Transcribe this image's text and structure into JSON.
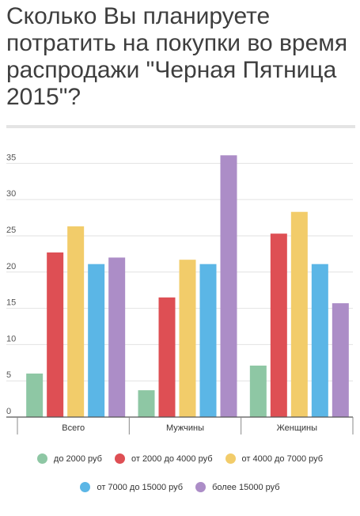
{
  "title": "Сколько Вы планируете потратить на покупки во время распродажи \"Черная Пятница 2015\"?",
  "chart_data": {
    "type": "bar",
    "title": "Сколько Вы планируете потратить на покупки во время распродажи \"Черная Пятница 2015\"?",
    "categories": [
      "Всего",
      "Мужчины",
      "Женщины"
    ],
    "series": [
      {
        "name": "до 2000 руб",
        "color": "#8ec7a4",
        "values": [
          6,
          3.7,
          7.1
        ]
      },
      {
        "name": "от 2000 до 4000 руб",
        "color": "#de4f54",
        "values": [
          22.7,
          16.5,
          25.3
        ]
      },
      {
        "name": "от 4000 до 7000 руб",
        "color": "#f2cc6a",
        "values": [
          26.3,
          21.7,
          28.3
        ]
      },
      {
        "name": "от 7000 до 15000 руб",
        "color": "#5bb6e6",
        "values": [
          21.1,
          21.1,
          21.1
        ]
      },
      {
        "name": "более 15000 руб",
        "color": "#ac8dc7",
        "values": [
          22,
          36.1,
          15.7
        ]
      }
    ],
    "yticks": [
      0,
      5,
      10,
      15,
      20,
      25,
      30,
      35
    ],
    "ylim": [
      0,
      37
    ],
    "grid": true,
    "legend_position": "bottom"
  }
}
